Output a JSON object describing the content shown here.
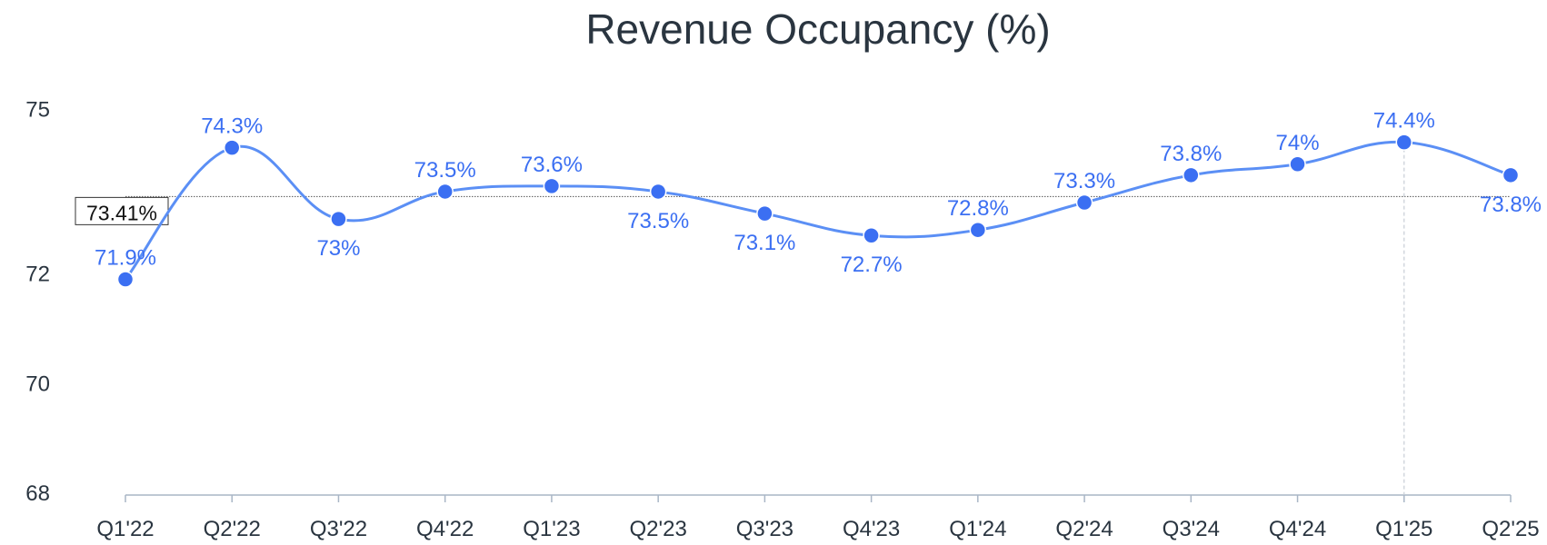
{
  "chart_data": {
    "type": "line",
    "title": "Revenue Occupancy (%)",
    "xlabel": "",
    "ylabel": "",
    "categories": [
      "Q1'22",
      "Q2'22",
      "Q3'22",
      "Q4'22",
      "Q1'23",
      "Q2'23",
      "Q3'23",
      "Q4'23",
      "Q1'24",
      "Q2'24",
      "Q3'24",
      "Q4'24",
      "Q1'25",
      "Q2'25"
    ],
    "series": [
      {
        "values": [
          71.9,
          74.3,
          73.0,
          73.5,
          73.6,
          73.5,
          73.1,
          72.7,
          72.8,
          73.3,
          73.8,
          74.0,
          74.4,
          73.8
        ],
        "labels": [
          "71.9%",
          "74.3%",
          "73%",
          "73.5%",
          "73.6%",
          "73.5%",
          "73.1%",
          "72.7%",
          "72.8%",
          "73.3%",
          "73.8%",
          "74%",
          "74.4%",
          "73.8%"
        ],
        "label_positions": [
          "above",
          "above",
          "below",
          "above",
          "above",
          "below",
          "below",
          "below",
          "above",
          "above",
          "above",
          "above",
          "above",
          "below"
        ]
      }
    ],
    "ylim": [
      68,
      76
    ],
    "yticks": [
      {
        "value": 68,
        "label": "68"
      },
      {
        "value": 70,
        "label": "70"
      },
      {
        "value": 72,
        "label": "72"
      },
      {
        "value": 75,
        "label": "75"
      }
    ],
    "average_line": {
      "value": 73.41,
      "label": "73.41%"
    },
    "highlight_category": "Q1'25",
    "grid": false,
    "smooth": true
  },
  "colors": {
    "series": "#3b6ff2",
    "series_line": "#5b8ff5",
    "text": "#2a3540",
    "axis": "#a9b6c6",
    "tick_text": "#2a3540",
    "reference": "#555555"
  }
}
